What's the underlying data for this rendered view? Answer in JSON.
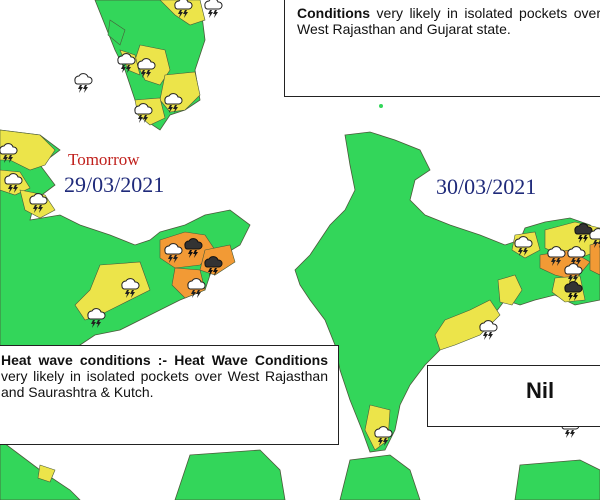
{
  "top_right_box": {
    "bold_text": "Conditions",
    "rest_text": " very likely in isolated pockets over West Rajasthan and Gujarat state."
  },
  "left_panel": {
    "tag": "Tomorrow",
    "date": "29/03/2021",
    "box": {
      "bold_text": "Heat wave conditions :- Heat Wave Conditions",
      "rest_text": " very likely in isolated pockets over West Rajasthan and Saurashtra & Kutch."
    }
  },
  "right_panel": {
    "date": "30/03/2021",
    "box_text": "Nil"
  },
  "colors": {
    "green": "#33d65a",
    "yellow": "#ece44a",
    "orange": "#f29a35",
    "district_lines": "#4a5a3a",
    "date_text": "#1f2a7a",
    "tomorrow_text": "#c0201c"
  },
  "icons": [
    "thunderstorm-icon",
    "rain-cloud-icon"
  ]
}
